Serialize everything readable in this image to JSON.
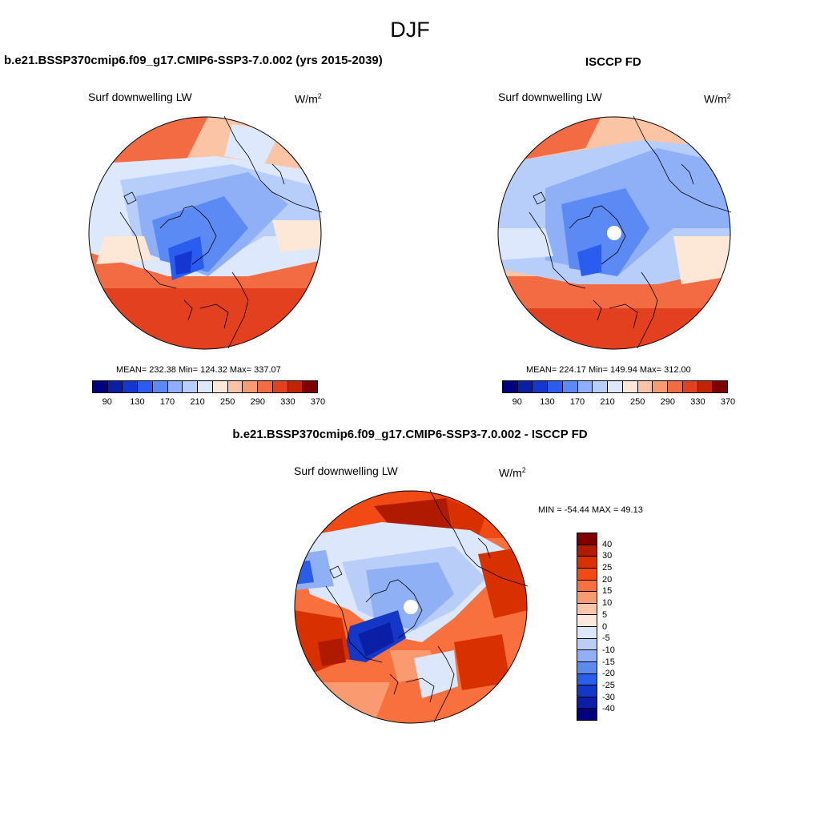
{
  "season": "DJF",
  "panels": {
    "model": {
      "title": "b.e21.BSSP370cmip6.f09_g17.CMIP6-SSP3-7.0.002 (yrs 2015-2039)",
      "variable": "Surf downwelling LW",
      "units_base": "W/m",
      "units_exp": "2",
      "stats": "MEAN= 232.38  Min= 124.32  Max= 337.07"
    },
    "obs": {
      "title": "ISCCP FD",
      "variable": "Surf downwelling LW",
      "units_base": "W/m",
      "units_exp": "2",
      "stats": "MEAN= 224.17  Min= 149.94  Max= 312.00"
    },
    "diff": {
      "title": "b.e21.BSSP370cmip6.f09_g17.CMIP6-SSP3-7.0.002 - ISCCP FD",
      "variable": "Surf downwelling LW",
      "units_base": "W/m",
      "units_exp": "2",
      "stats": "MIN = -54.44 MAX =  49.13"
    }
  },
  "colorbars": {
    "absolute": {
      "colors": [
        "#00007f",
        "#0a1fa8",
        "#1437d2",
        "#2a5cf0",
        "#5c8af5",
        "#8fb0f7",
        "#b8cefa",
        "#dde8fc",
        "#fde8d8",
        "#fbc4a4",
        "#f89a72",
        "#f26b42",
        "#e2401e",
        "#c02508",
        "#7f0000"
      ],
      "tick_labels": [
        "90",
        "130",
        "170",
        "210",
        "250",
        "290",
        "330",
        "370"
      ]
    },
    "difference": {
      "colors": [
        "#7f0000",
        "#b01a00",
        "#d93000",
        "#f24a14",
        "#f8703e",
        "#f99a70",
        "#fbc7a8",
        "#fde9dc",
        "#dce7fb",
        "#b8cdf8",
        "#8fb0f4",
        "#5c8aef",
        "#2a5ee8",
        "#1437c8",
        "#0a1fa5",
        "#00007f"
      ],
      "tick_labels": [
        "40",
        "30",
        "25",
        "20",
        "15",
        "10",
        "5",
        "0",
        "-5",
        "-10",
        "-15",
        "-20",
        "-25",
        "-30",
        "-40"
      ]
    }
  }
}
